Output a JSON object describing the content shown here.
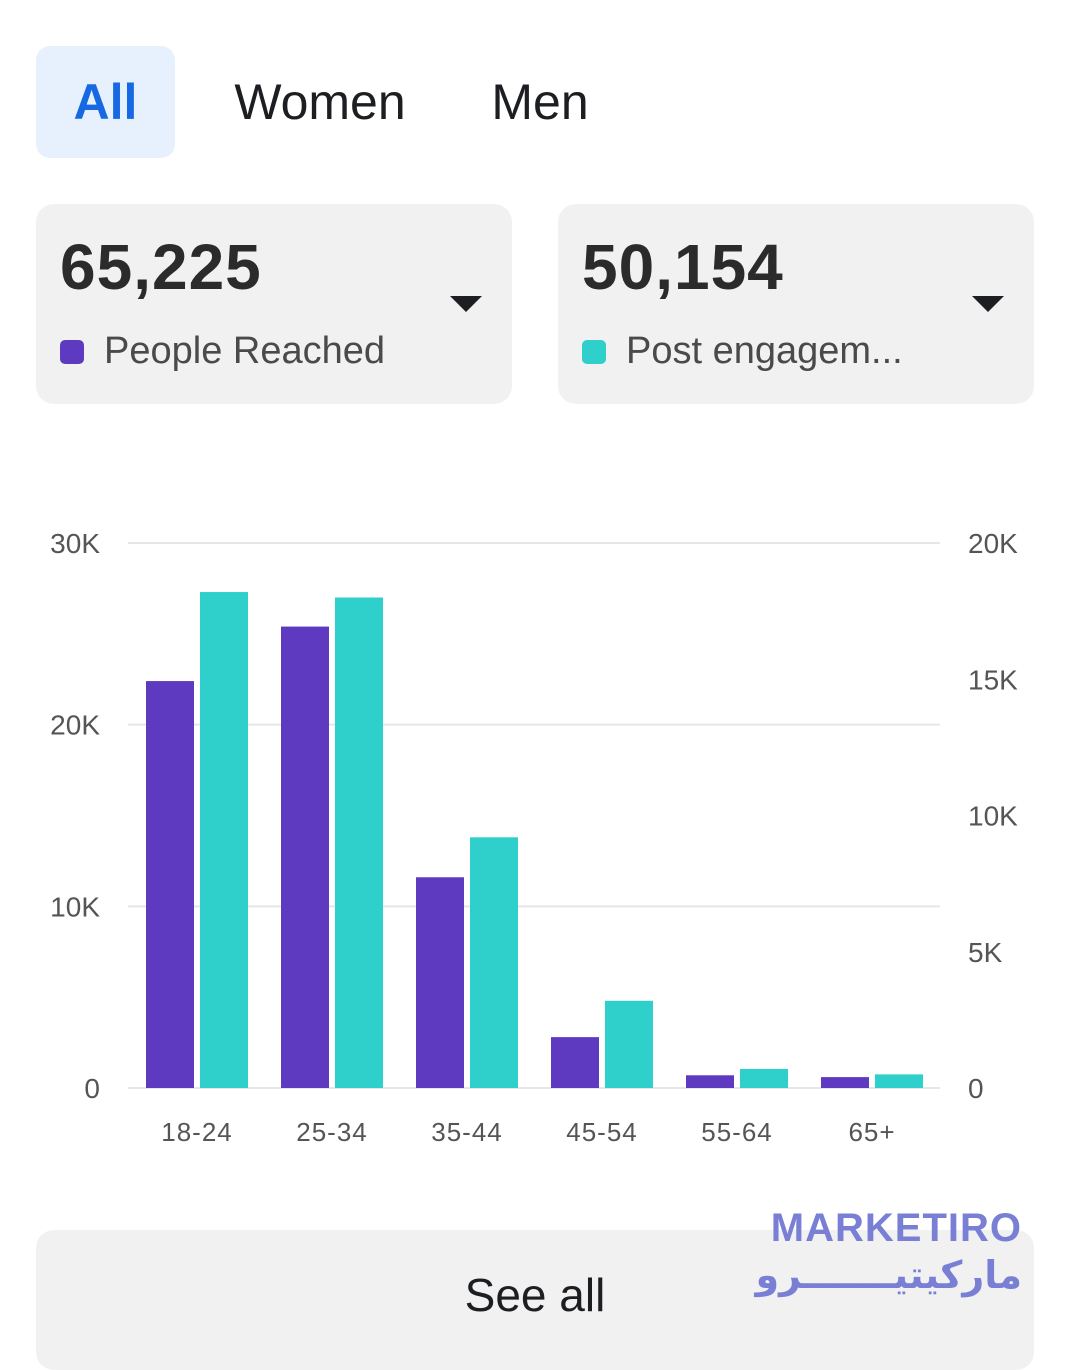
{
  "tabs": [
    {
      "label": "All",
      "active": true
    },
    {
      "label": "Women",
      "active": false
    },
    {
      "label": "Men",
      "active": false
    }
  ],
  "metrics": [
    {
      "value": "65,225",
      "label": "People Reached",
      "color": "#5e3ac0",
      "icon": "chevron-down-icon"
    },
    {
      "value": "50,154",
      "label": "Post engagem...",
      "color": "#2fcfcb",
      "icon": "chevron-down-icon"
    }
  ],
  "colors": {
    "reach": "#5e3ac0",
    "engagement": "#2fcfcb",
    "grid": "#e6e6e6",
    "axis_text": "#555555",
    "tab_active_bg": "#e7f0fd",
    "tab_active_text": "#1668e3"
  },
  "chart_data": {
    "type": "bar",
    "categories": [
      "18-24",
      "25-34",
      "35-44",
      "45-54",
      "55-64",
      "65+"
    ],
    "series": [
      {
        "name": "People Reached",
        "axis": "left",
        "values": [
          22400,
          25400,
          11600,
          2800,
          700,
          600
        ]
      },
      {
        "name": "Post engagement",
        "axis": "right",
        "values": [
          18200,
          18000,
          9200,
          3200,
          700,
          500
        ]
      }
    ],
    "ylim_left": [
      0,
      30000
    ],
    "yticks_left": [
      {
        "value": 0,
        "label": "0"
      },
      {
        "value": 10000,
        "label": "10K"
      },
      {
        "value": 20000,
        "label": "20K"
      },
      {
        "value": 30000,
        "label": "30K"
      }
    ],
    "ylim_right": [
      0,
      20000
    ],
    "yticks_right": [
      {
        "value": 0,
        "label": "0"
      },
      {
        "value": 5000,
        "label": "5K"
      },
      {
        "value": 10000,
        "label": "10K"
      },
      {
        "value": 15000,
        "label": "15K"
      },
      {
        "value": 20000,
        "label": "20K"
      }
    ],
    "grid": true,
    "title": "",
    "xlabel": "",
    "ylabel": ""
  },
  "see_all_label": "See all",
  "watermark": {
    "name_en": "MARKETIRO",
    "name_ar": "ماركيتيـــــــرو"
  }
}
